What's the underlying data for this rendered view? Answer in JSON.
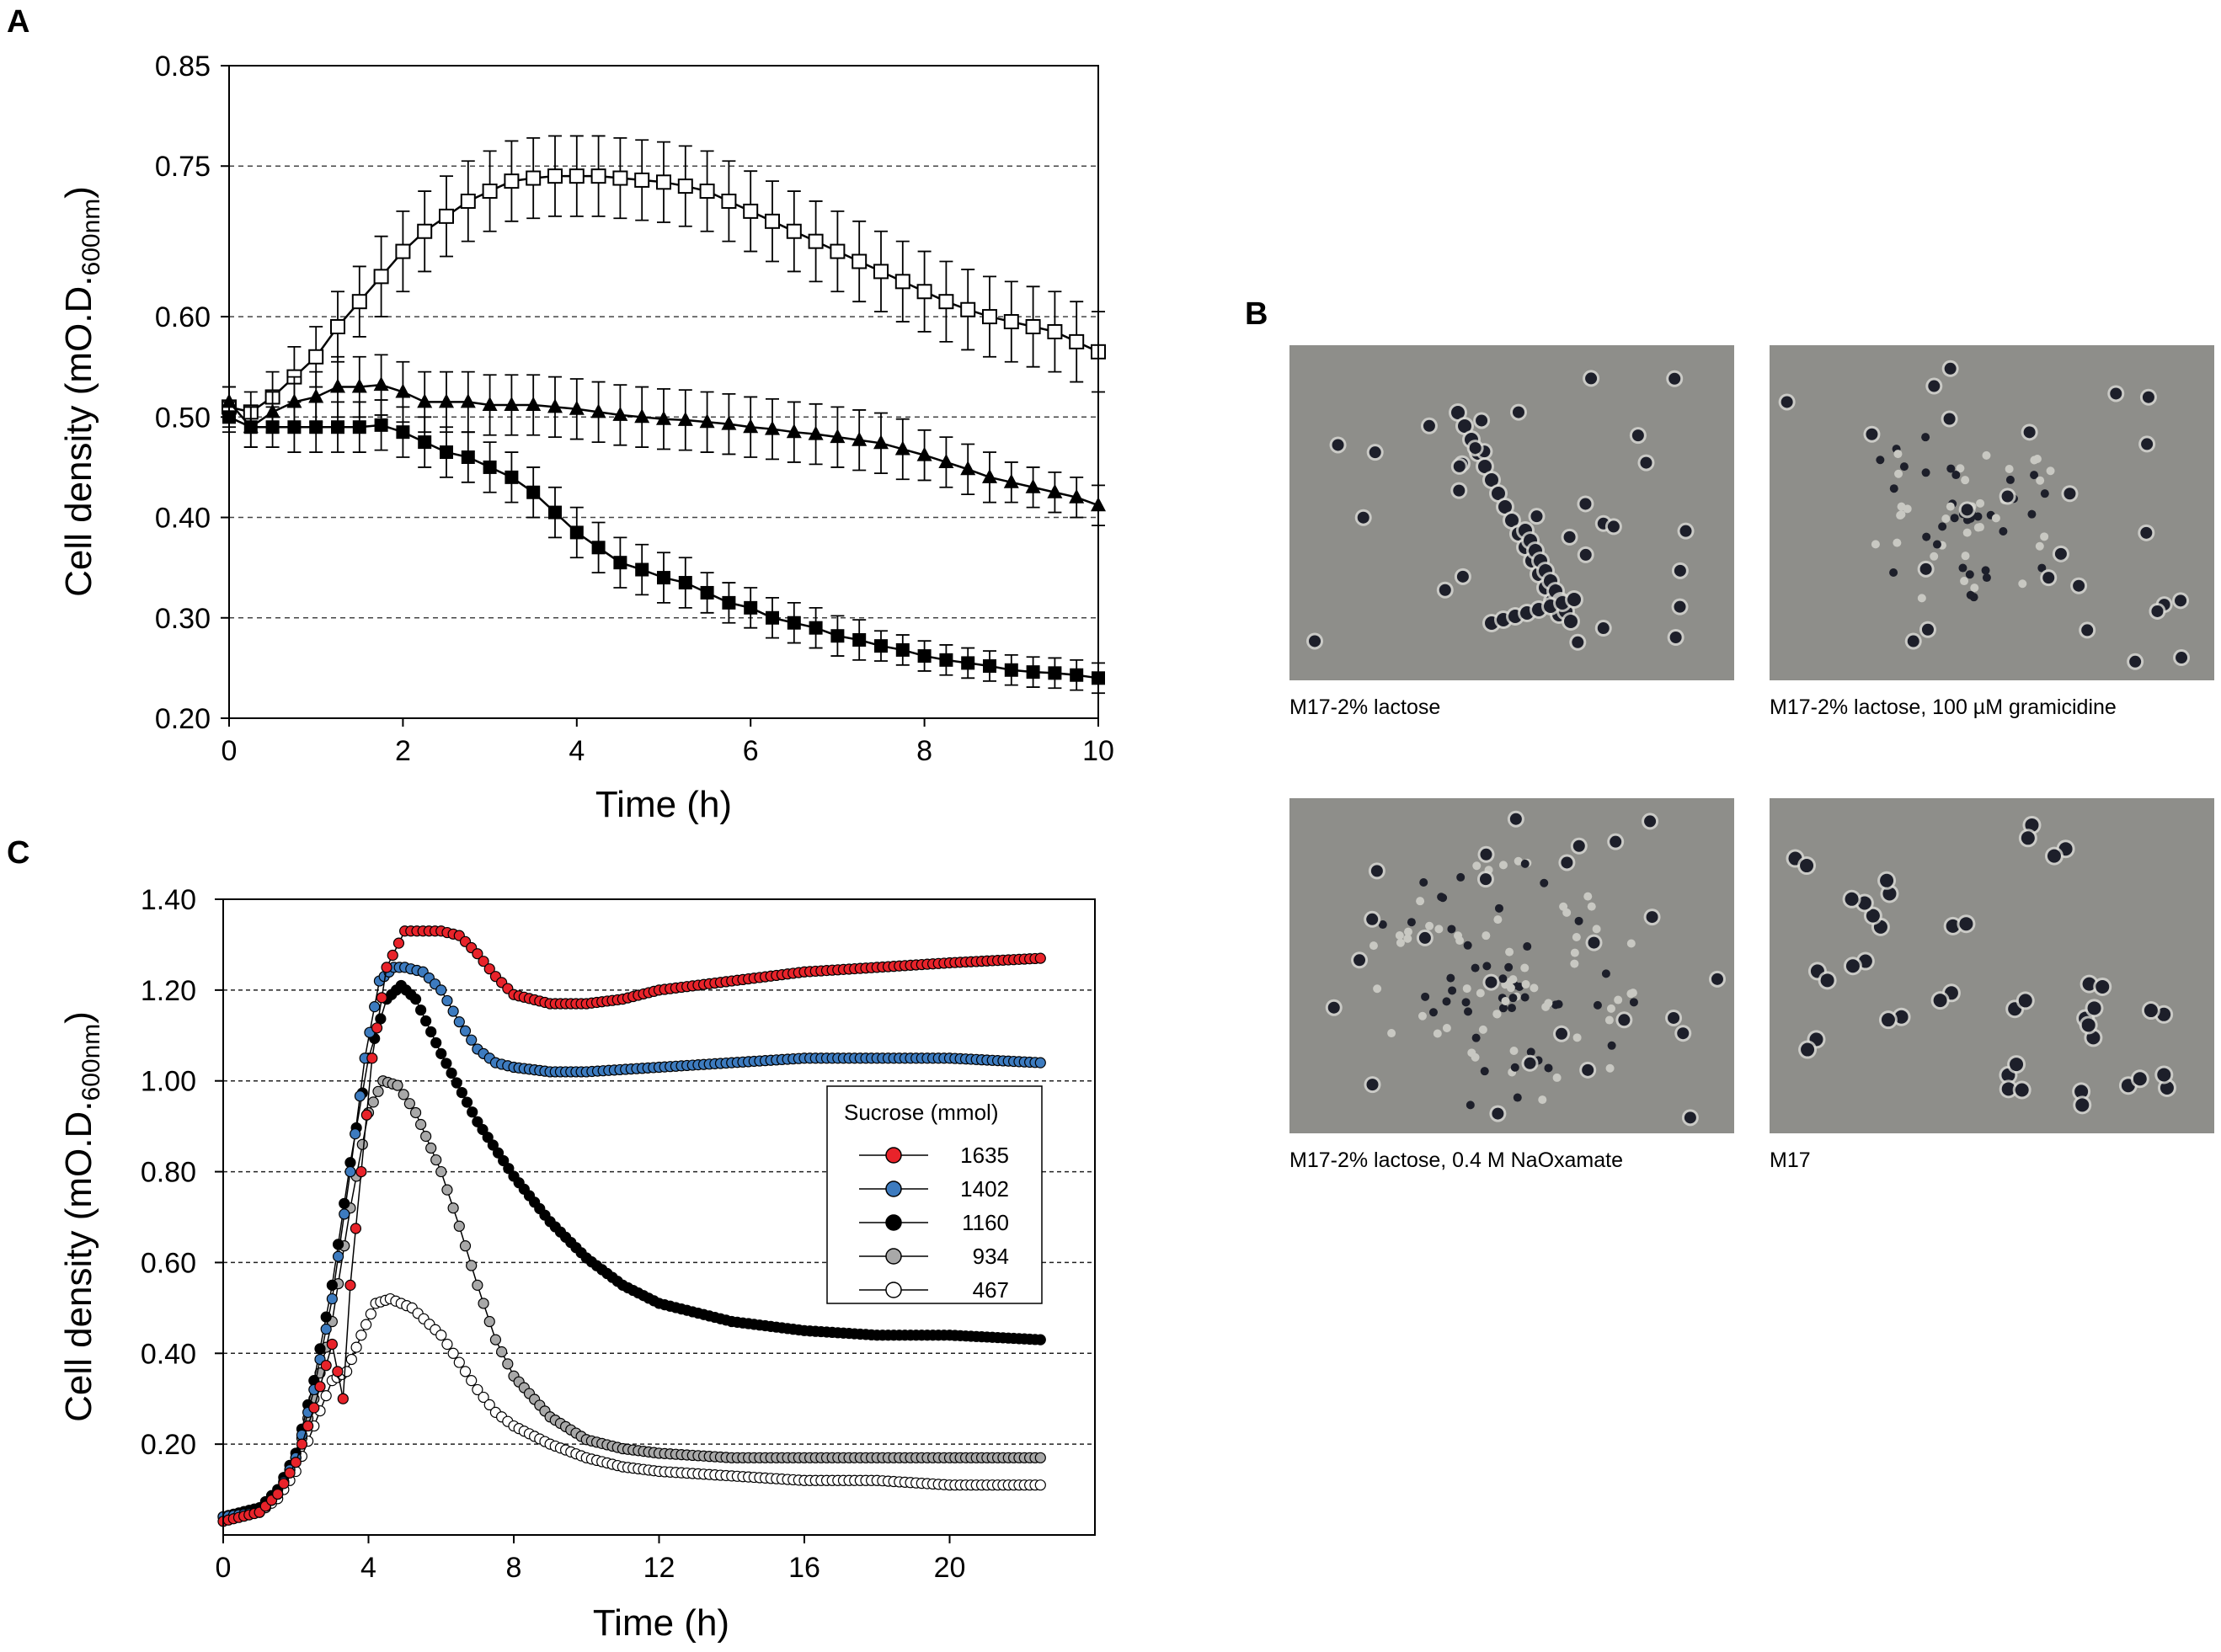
{
  "panels": {
    "a": "A",
    "b": "B",
    "c": "C"
  },
  "chart_data": [
    {
      "id": "A",
      "type": "line",
      "title": "",
      "xlabel": "Time (h)",
      "ylabel_main": "Cell density (mO.D.",
      "ylabel_sub": "600nm",
      "ylabel_close": ")",
      "xlim": [
        0,
        10
      ],
      "ylim": [
        0.2,
        0.85
      ],
      "xticks": [
        0,
        2,
        4,
        6,
        8,
        10
      ],
      "xtick_labels": [
        "0",
        "2",
        "4",
        "6",
        "8",
        "10"
      ],
      "yticks": [
        0.2,
        0.3,
        0.4,
        0.5,
        0.6,
        0.75,
        0.85
      ],
      "ytick_labels": [
        "0.20",
        "0.30",
        "0.40",
        "0.50",
        "0.60",
        "0.75",
        "0.85"
      ],
      "gridlines_y": [
        0.3,
        0.4,
        0.5,
        0.6,
        0.75
      ],
      "series": [
        {
          "name": "open squares",
          "marker": "square-open",
          "x": [
            0,
            0.25,
            0.5,
            0.75,
            1,
            1.25,
            1.5,
            1.75,
            2,
            2.25,
            2.5,
            2.75,
            3,
            3.25,
            3.5,
            3.75,
            4,
            4.25,
            4.5,
            4.75,
            5,
            5.25,
            5.5,
            5.75,
            6,
            6.25,
            6.5,
            6.75,
            7,
            7.25,
            7.5,
            7.75,
            8,
            8.25,
            8.5,
            8.75,
            9,
            9.25,
            9.5,
            9.75,
            10
          ],
          "y": [
            0.51,
            0.505,
            0.52,
            0.54,
            0.56,
            0.59,
            0.615,
            0.64,
            0.665,
            0.685,
            0.7,
            0.715,
            0.725,
            0.735,
            0.738,
            0.74,
            0.74,
            0.74,
            0.738,
            0.736,
            0.734,
            0.73,
            0.725,
            0.715,
            0.705,
            0.695,
            0.685,
            0.675,
            0.665,
            0.655,
            0.645,
            0.635,
            0.625,
            0.615,
            0.607,
            0.6,
            0.595,
            0.59,
            0.585,
            0.575,
            0.565
          ],
          "err": [
            0.02,
            0.02,
            0.025,
            0.03,
            0.03,
            0.035,
            0.035,
            0.04,
            0.04,
            0.04,
            0.04,
            0.04,
            0.04,
            0.04,
            0.04,
            0.04,
            0.04,
            0.04,
            0.04,
            0.04,
            0.04,
            0.04,
            0.04,
            0.04,
            0.04,
            0.04,
            0.04,
            0.04,
            0.04,
            0.04,
            0.04,
            0.04,
            0.04,
            0.04,
            0.04,
            0.04,
            0.04,
            0.04,
            0.04,
            0.04,
            0.04
          ]
        },
        {
          "name": "filled triangles",
          "marker": "triangle-filled",
          "x": [
            0,
            0.25,
            0.5,
            0.75,
            1,
            1.25,
            1.5,
            1.75,
            2,
            2.25,
            2.5,
            2.75,
            3,
            3.25,
            3.5,
            3.75,
            4,
            4.25,
            4.5,
            4.75,
            5,
            5.25,
            5.5,
            5.75,
            6,
            6.25,
            6.5,
            6.75,
            7,
            7.25,
            7.5,
            7.75,
            8,
            8.25,
            8.5,
            8.75,
            9,
            9.25,
            9.5,
            9.75,
            10
          ],
          "y": [
            0.515,
            0.49,
            0.505,
            0.515,
            0.52,
            0.53,
            0.53,
            0.532,
            0.525,
            0.515,
            0.515,
            0.515,
            0.512,
            0.512,
            0.512,
            0.51,
            0.508,
            0.505,
            0.502,
            0.5,
            0.498,
            0.497,
            0.495,
            0.493,
            0.49,
            0.488,
            0.485,
            0.483,
            0.48,
            0.477,
            0.474,
            0.468,
            0.462,
            0.455,
            0.448,
            0.44,
            0.435,
            0.43,
            0.425,
            0.42,
            0.412
          ],
          "err": [
            0.015,
            0.02,
            0.02,
            0.025,
            0.025,
            0.03,
            0.03,
            0.03,
            0.03,
            0.03,
            0.03,
            0.03,
            0.03,
            0.03,
            0.03,
            0.03,
            0.03,
            0.03,
            0.03,
            0.03,
            0.03,
            0.03,
            0.03,
            0.03,
            0.03,
            0.03,
            0.03,
            0.03,
            0.03,
            0.03,
            0.03,
            0.03,
            0.025,
            0.025,
            0.025,
            0.025,
            0.02,
            0.02,
            0.02,
            0.02,
            0.02
          ]
        },
        {
          "name": "filled squares",
          "marker": "square-filled",
          "x": [
            0,
            0.25,
            0.5,
            0.75,
            1,
            1.25,
            1.5,
            1.75,
            2,
            2.25,
            2.5,
            2.75,
            3,
            3.25,
            3.5,
            3.75,
            4,
            4.25,
            4.5,
            4.75,
            5,
            5.25,
            5.5,
            5.75,
            6,
            6.25,
            6.5,
            6.75,
            7,
            7.25,
            7.5,
            7.75,
            8,
            8.25,
            8.5,
            8.75,
            9,
            9.25,
            9.5,
            9.75,
            10
          ],
          "y": [
            0.5,
            0.49,
            0.49,
            0.49,
            0.49,
            0.49,
            0.49,
            0.492,
            0.485,
            0.475,
            0.465,
            0.46,
            0.45,
            0.44,
            0.425,
            0.405,
            0.385,
            0.37,
            0.355,
            0.348,
            0.34,
            0.335,
            0.325,
            0.315,
            0.31,
            0.3,
            0.295,
            0.29,
            0.282,
            0.278,
            0.272,
            0.268,
            0.262,
            0.258,
            0.255,
            0.252,
            0.248,
            0.246,
            0.245,
            0.243,
            0.24
          ],
          "err": [
            0.015,
            0.02,
            0.02,
            0.025,
            0.025,
            0.025,
            0.025,
            0.025,
            0.025,
            0.025,
            0.025,
            0.025,
            0.025,
            0.025,
            0.025,
            0.025,
            0.025,
            0.025,
            0.025,
            0.025,
            0.025,
            0.025,
            0.02,
            0.02,
            0.02,
            0.02,
            0.02,
            0.02,
            0.02,
            0.02,
            0.015,
            0.015,
            0.015,
            0.015,
            0.015,
            0.015,
            0.015,
            0.015,
            0.015,
            0.015,
            0.015
          ]
        }
      ]
    },
    {
      "id": "C",
      "type": "scatter",
      "title": "",
      "xlabel": "Time (h)",
      "ylabel_main": "Cell density (mO.D.",
      "ylabel_sub": "600nm",
      "ylabel_close": ")",
      "xlim": [
        0,
        24
      ],
      "ylim": [
        0,
        1.4
      ],
      "xticks": [
        0,
        4,
        8,
        12,
        16,
        20
      ],
      "xtick_labels": [
        "0",
        "4",
        "8",
        "12",
        "16",
        "20"
      ],
      "yticks": [
        0.2,
        0.4,
        0.6,
        0.8,
        1.0,
        1.2,
        1.4
      ],
      "ytick_labels": [
        "0.20",
        "0.40",
        "0.60",
        "0.80",
        "1.00",
        "1.20",
        "1.40"
      ],
      "gridlines_y": [
        0.2,
        0.4,
        0.6,
        0.8,
        1.0,
        1.2
      ],
      "legend": {
        "title": "Sucrose (mmol)",
        "position": "center-right"
      },
      "series": [
        {
          "name": "1635",
          "color": "#e8232a",
          "points": [
            [
              0,
              0.03
            ],
            [
              1,
              0.05
            ],
            [
              1.5,
              0.09
            ],
            [
              2,
              0.16
            ],
            [
              2.5,
              0.28
            ],
            [
              3,
              0.42
            ],
            [
              3.3,
              0.3
            ],
            [
              3.5,
              0.55
            ],
            [
              3.8,
              0.8
            ],
            [
              4.1,
              1.05
            ],
            [
              4.5,
              1.25
            ],
            [
              5,
              1.33
            ],
            [
              5.5,
              1.33
            ],
            [
              6,
              1.33
            ],
            [
              6.5,
              1.32
            ],
            [
              7,
              1.28
            ],
            [
              7.5,
              1.23
            ],
            [
              8,
              1.19
            ],
            [
              9,
              1.17
            ],
            [
              10,
              1.17
            ],
            [
              11,
              1.18
            ],
            [
              12,
              1.2
            ],
            [
              14,
              1.22
            ],
            [
              16,
              1.24
            ],
            [
              18,
              1.25
            ],
            [
              20,
              1.26
            ],
            [
              22.5,
              1.27
            ]
          ]
        },
        {
          "name": "1402",
          "color": "#3d7bbf",
          "points": [
            [
              0,
              0.04
            ],
            [
              1,
              0.05
            ],
            [
              1.5,
              0.09
            ],
            [
              2,
              0.17
            ],
            [
              2.5,
              0.32
            ],
            [
              3,
              0.52
            ],
            [
              3.5,
              0.8
            ],
            [
              3.9,
              1.05
            ],
            [
              4.3,
              1.22
            ],
            [
              4.7,
              1.25
            ],
            [
              5,
              1.25
            ],
            [
              5.5,
              1.24
            ],
            [
              6,
              1.2
            ],
            [
              6.5,
              1.13
            ],
            [
              7,
              1.07
            ],
            [
              7.5,
              1.04
            ],
            [
              8,
              1.03
            ],
            [
              9,
              1.02
            ],
            [
              10,
              1.02
            ],
            [
              12,
              1.03
            ],
            [
              14,
              1.04
            ],
            [
              16,
              1.05
            ],
            [
              18,
              1.05
            ],
            [
              20,
              1.05
            ],
            [
              22.5,
              1.04
            ]
          ]
        },
        {
          "name": "1160",
          "color": "#000000",
          "points": [
            [
              0,
              0.04
            ],
            [
              1,
              0.06
            ],
            [
              1.5,
              0.1
            ],
            [
              2,
              0.18
            ],
            [
              2.5,
              0.34
            ],
            [
              3,
              0.55
            ],
            [
              3.5,
              0.82
            ],
            [
              4,
              1.05
            ],
            [
              4.5,
              1.18
            ],
            [
              4.9,
              1.21
            ],
            [
              5.3,
              1.18
            ],
            [
              6,
              1.06
            ],
            [
              7,
              0.91
            ],
            [
              8,
              0.79
            ],
            [
              9,
              0.69
            ],
            [
              10,
              0.61
            ],
            [
              11,
              0.55
            ],
            [
              12,
              0.51
            ],
            [
              14,
              0.47
            ],
            [
              16,
              0.45
            ],
            [
              18,
              0.44
            ],
            [
              20,
              0.44
            ],
            [
              22.5,
              0.43
            ]
          ]
        },
        {
          "name": "934",
          "color": "#a8a8a8",
          "points": [
            [
              0,
              0.04
            ],
            [
              1,
              0.05
            ],
            [
              1.5,
              0.09
            ],
            [
              2,
              0.17
            ],
            [
              2.5,
              0.3
            ],
            [
              3,
              0.47
            ],
            [
              3.5,
              0.72
            ],
            [
              4,
              0.93
            ],
            [
              4.4,
              1.0
            ],
            [
              4.8,
              0.99
            ],
            [
              5.3,
              0.93
            ],
            [
              6,
              0.8
            ],
            [
              6.5,
              0.68
            ],
            [
              7,
              0.55
            ],
            [
              7.5,
              0.43
            ],
            [
              8,
              0.35
            ],
            [
              9,
              0.26
            ],
            [
              10,
              0.21
            ],
            [
              11,
              0.19
            ],
            [
              12,
              0.18
            ],
            [
              14,
              0.17
            ],
            [
              16,
              0.17
            ],
            [
              18,
              0.17
            ],
            [
              20,
              0.17
            ],
            [
              22.5,
              0.17
            ]
          ]
        },
        {
          "name": "467",
          "color": "#ffffff",
          "points": [
            [
              0,
              0.04
            ],
            [
              1,
              0.05
            ],
            [
              1.5,
              0.08
            ],
            [
              2,
              0.14
            ],
            [
              2.5,
              0.24
            ],
            [
              3,
              0.34
            ],
            [
              3.4,
              0.36
            ],
            [
              3.8,
              0.44
            ],
            [
              4.2,
              0.51
            ],
            [
              4.6,
              0.52
            ],
            [
              5.2,
              0.5
            ],
            [
              6,
              0.44
            ],
            [
              6.5,
              0.38
            ],
            [
              7,
              0.32
            ],
            [
              7.5,
              0.27
            ],
            [
              8,
              0.24
            ],
            [
              9,
              0.2
            ],
            [
              10,
              0.17
            ],
            [
              11,
              0.15
            ],
            [
              12,
              0.14
            ],
            [
              14,
              0.13
            ],
            [
              16,
              0.12
            ],
            [
              18,
              0.12
            ],
            [
              20,
              0.11
            ],
            [
              22.5,
              0.11
            ]
          ]
        }
      ]
    }
  ],
  "micrographs": [
    {
      "caption": "M17-2% lactose",
      "pattern": "chains"
    },
    {
      "caption": "M17-2% lactose, 100 µM gramicidine",
      "pattern": "cluster"
    },
    {
      "caption": "M17-2% lactose, 0.4 M NaOxamate",
      "pattern": "cluster-large"
    },
    {
      "caption": "M17",
      "pattern": "pairs"
    }
  ]
}
